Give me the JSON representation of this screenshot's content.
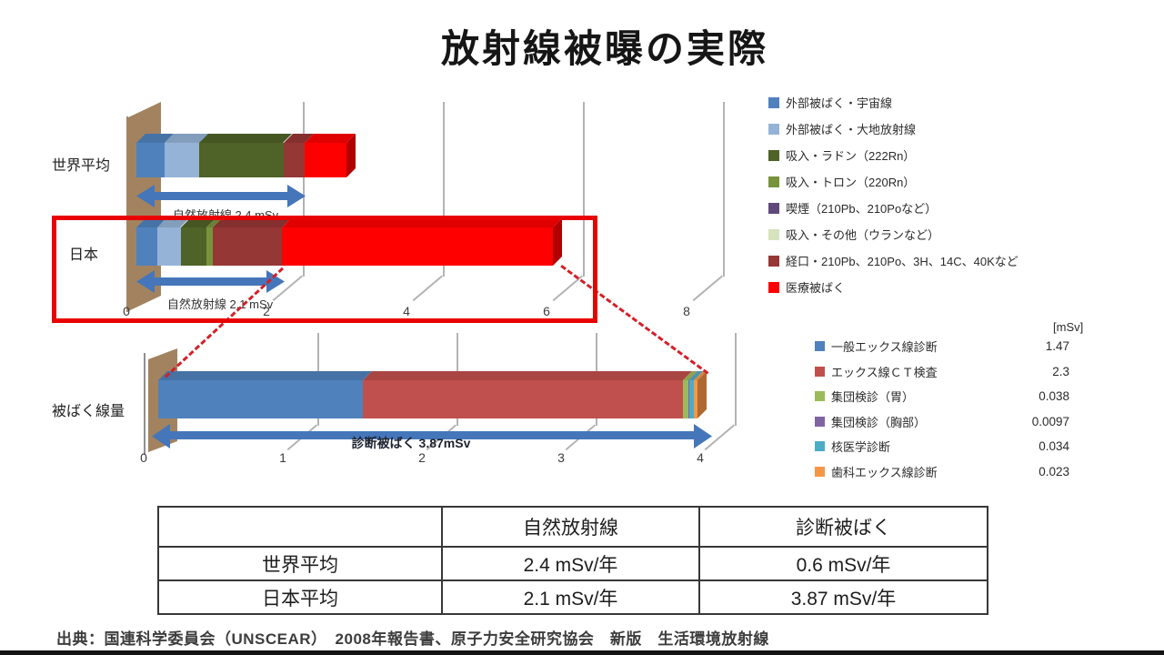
{
  "title": "放射線被曝の実際",
  "chart_data": [
    {
      "type": "bar",
      "orientation": "horizontal",
      "stacked": true,
      "style": "3d",
      "categories": [
        "世界平均",
        "日本"
      ],
      "x_ticks": [
        0,
        2,
        4,
        6,
        8
      ],
      "x_unit": "mSv",
      "series": [
        {
          "name": "外部被ばく・宇宙線",
          "color": "#4f81bd",
          "values": [
            0.4,
            0.3
          ]
        },
        {
          "name": "外部被ばく・大地放射線",
          "color": "#95b3d7",
          "values": [
            0.5,
            0.33
          ]
        },
        {
          "name": "吸入・ラドン（222Rn）",
          "color": "#4f6228",
          "values": [
            1.2,
            0.37
          ]
        },
        {
          "name": "吸入・トロン（220Rn）",
          "color": "#77933c",
          "values": [
            0,
            0.09
          ]
        },
        {
          "name": "喫煙（210Pb、210Poなど）",
          "color": "#604a7b",
          "values": [
            0,
            0
          ]
        },
        {
          "name": "吸入・その他（ウランなど）",
          "color": "#d6e3bc",
          "values": [
            0,
            0
          ]
        },
        {
          "name": "経口・210Pb、210Po、3H、14C、40Kなど",
          "color": "#953735",
          "values": [
            0.3,
            0.99
          ]
        },
        {
          "name": "医療被ばく",
          "color": "#fe0000",
          "values": [
            0.6,
            3.87
          ]
        }
      ],
      "annotations": [
        "自然放射線 2.4 mSv",
        "自然放射線 2.1 mSv"
      ],
      "highlight": "日本 row outlined in red"
    },
    {
      "type": "bar",
      "orientation": "horizontal",
      "stacked": true,
      "style": "3d",
      "categories": [
        "被ばく線量"
      ],
      "x_ticks": [
        0,
        1,
        2,
        3,
        4
      ],
      "x_unit": "mSv",
      "legend_header": "[mSv]",
      "annotation": "診断被ばく 3.87mSv",
      "series": [
        {
          "name": "一般エックス線診断",
          "color": "#4f81bd",
          "value": 1.47,
          "display": "1.47"
        },
        {
          "name": "エックス線ＣＴ検査",
          "color": "#c0504d",
          "value": 2.3,
          "display": "2.3"
        },
        {
          "name": "集団検診（胃）",
          "color": "#9bbb59",
          "value": 0.038,
          "display": "0.038"
        },
        {
          "name": "集団検診（胸部）",
          "color": "#8064a2",
          "value": 0.0097,
          "display": "0.0097"
        },
        {
          "name": "核医学診断",
          "color": "#4bacc6",
          "value": 0.034,
          "display": "0.034"
        },
        {
          "name": "歯科エックス線診断",
          "color": "#f79646",
          "value": 0.023,
          "display": "0.023"
        }
      ]
    }
  ],
  "table": {
    "headers": [
      "",
      "自然放射線",
      "診断被ばく"
    ],
    "rows": [
      [
        "世界平均",
        "2.4 mSv/年",
        "0.6 mSv/年"
      ],
      [
        "日本平均",
        "2.1 mSv/年",
        "3.87 mSv/年"
      ]
    ]
  },
  "source": "出典：国連科学委員会（UNSCEAR）　2008年報告書、原子力安全研究協会　新版　生活環境放射線"
}
